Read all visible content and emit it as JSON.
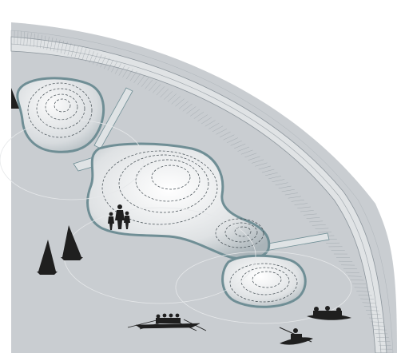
{
  "diagram": {
    "description_visible_text": [],
    "colors": {
      "water": "#c9cdd1",
      "outer_bg": "#ffffff",
      "wall": "#d9dcdf",
      "wall_line": "#8c959c",
      "pool_edge": "#6f8e95",
      "pool_fill_light": "#f7f8f8",
      "pool_fill_dark": "#c2c8cc",
      "contour": "#3d474d",
      "silhouette": "#1f1f1f"
    },
    "icons": [
      "family-silhouette-icon",
      "sailboat-icon",
      "rowing-boat-icon",
      "kayaker-icon",
      "canoe-group-icon"
    ]
  }
}
